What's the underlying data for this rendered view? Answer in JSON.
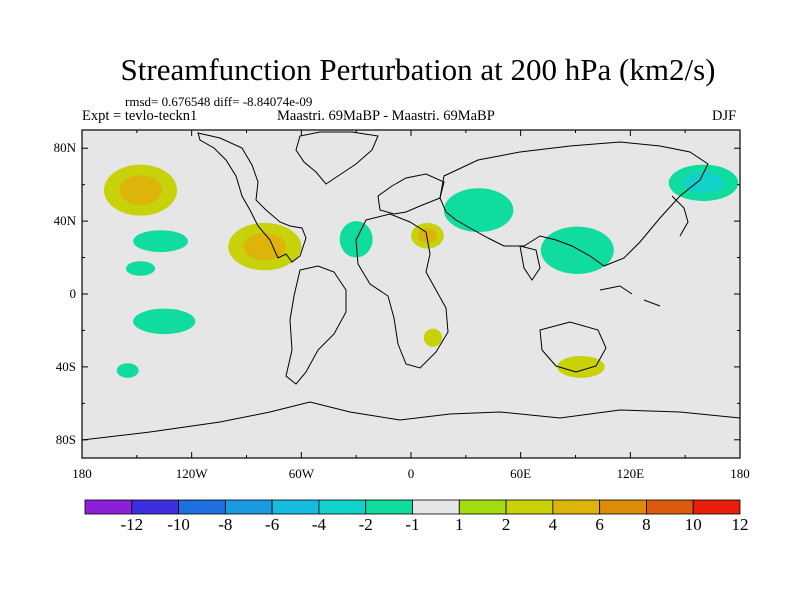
{
  "title": "Streamfunction Perturbation at 200 hPa (km2/s)",
  "stats_line": "rmsd= 0.676548 diff= -8.84074e-09",
  "expt_label": "Expt = tevlo-teckn1",
  "center_label": "Maastri. 69MaBP - Maastri. 69MaBP",
  "season_label": "DJF",
  "y_tick_labels": [
    "80N",
    "40N",
    "0",
    "40S",
    "80S"
  ],
  "x_tick_labels": [
    "180",
    "120W",
    "60W",
    "0",
    "60E",
    "120E",
    "180"
  ],
  "colorbar": {
    "labels": [
      "-12",
      "-10",
      "-8",
      "-6",
      "-4",
      "-2",
      "-1",
      "1",
      "2",
      "4",
      "6",
      "8",
      "10",
      "12"
    ],
    "colors": [
      "#8c1fd8",
      "#3d2ee0",
      "#1e6fe0",
      "#1a9ae0",
      "#16bce0",
      "#10d2c8",
      "#10dca0",
      "#e6e6e6",
      "#a0dc10",
      "#c8d20a",
      "#dcb40a",
      "#dc8c0a",
      "#dc5a0a",
      "#e61e0a"
    ]
  },
  "anomalies": [
    {
      "lon": -148,
      "lat": 57,
      "value": 4,
      "outer": 2,
      "rlon": 20,
      "rlat": 14
    },
    {
      "lon": -137,
      "lat": 29,
      "value": -2,
      "rlon": 15,
      "rlat": 6
    },
    {
      "lon": -148,
      "lat": 14,
      "value": -2,
      "rlon": 8,
      "rlat": 4
    },
    {
      "lon": -135,
      "lat": -15,
      "value": -2,
      "rlon": 17,
      "rlat": 7
    },
    {
      "lon": -155,
      "lat": -42,
      "value": -2,
      "rlon": 6,
      "rlat": 4
    },
    {
      "lon": -80,
      "lat": 26,
      "value": 4,
      "outer": 2,
      "rlon": 20,
      "rlat": 13
    },
    {
      "lon": -30,
      "lat": 30,
      "value": -2,
      "rlon": 9,
      "rlat": 10
    },
    {
      "lon": 9,
      "lat": 32,
      "value": 4,
      "outer": 2,
      "rlon": 9,
      "rlat": 7
    },
    {
      "lon": 37,
      "lat": 46,
      "value": -2,
      "rlon": 19,
      "rlat": 12
    },
    {
      "lon": 91,
      "lat": 24,
      "value": -2,
      "rlon": 20,
      "rlat": 13
    },
    {
      "lon": 160,
      "lat": 61,
      "value": -4,
      "outer": -2,
      "rlon": 19,
      "rlat": 10
    },
    {
      "lon": 12,
      "lat": -24,
      "value": 2,
      "rlon": 5,
      "rlat": 5
    },
    {
      "lon": 93,
      "lat": -40,
      "value": 2,
      "rlon": 13,
      "rlat": 6
    }
  ]
}
